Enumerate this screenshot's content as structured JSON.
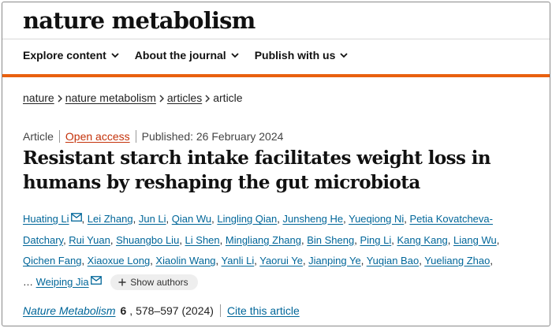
{
  "site": {
    "masthead": "nature metabolism"
  },
  "nav": [
    {
      "label": "Explore content"
    },
    {
      "label": "About the journal"
    },
    {
      "label": "Publish with us"
    }
  ],
  "breadcrumb": [
    {
      "label": "nature"
    },
    {
      "label": "nature metabolism"
    },
    {
      "label": "articles"
    },
    {
      "label": "article"
    }
  ],
  "meta": {
    "type": "Article",
    "access": "Open access",
    "published": "Published: 26 February 2024"
  },
  "title_line1": "Resistant starch intake facilitates weight loss in",
  "title_line2": "humans by reshaping the gut microbiota",
  "authors": [
    "Huating Li",
    "Lei Zhang",
    "Jun Li",
    "Qian Wu",
    "Lingling Qian",
    "Junsheng He",
    "Yueqiong Ni",
    "Petia Kovatcheva-",
    "Datchary",
    "Rui Yuan",
    "Shuangbo Liu",
    "Li Shen",
    "Mingliang Zhang",
    "Bin Sheng",
    "Ping Li",
    "Kang Kang",
    "Liang Wu",
    "Qichen Fang",
    "Xiaoxue Long",
    "Xiaolin Wang",
    "Yanli Li",
    "Yaorui Ye",
    "Jianping Ye",
    "Yuqian Bao",
    "Yueliang Zhao",
    "Weiping Jia"
  ],
  "authors_ellipsis": "…",
  "show_authors": "Show authors",
  "citation": {
    "journal": "Nature Metabolism",
    "volume": "6",
    "pages": ", 578–597 (2024)",
    "cite_link": "Cite this article"
  },
  "colors": {
    "accent": "#e9600f",
    "link": "#006699",
    "open_access": "#c4320a"
  },
  "icons": {
    "nav_chevron": "chevron-down-icon",
    "breadcrumb_sep": "chevron-right-icon",
    "author_mail": "mail-icon",
    "show_authors": "plus-icon"
  }
}
